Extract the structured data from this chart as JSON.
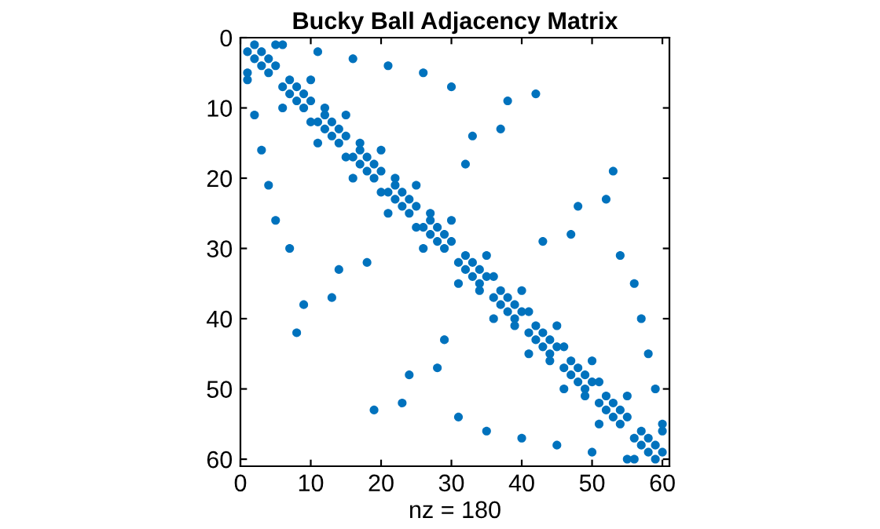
{
  "chart_data": {
    "type": "scatter",
    "title": "Bucky Ball Adjacency Matrix",
    "xlabel": "nz = 180",
    "xlim": [
      0,
      61
    ],
    "ylim": [
      61,
      0
    ],
    "xticks": [
      0,
      10,
      20,
      30,
      40,
      50,
      60
    ],
    "yticks": [
      0,
      10,
      20,
      30,
      40,
      50,
      60
    ],
    "marker": "circle",
    "grid": false,
    "legend": false,
    "series": [
      {
        "color": "#0072bd",
        "x": [
          1,
          2,
          2,
          3,
          3,
          4,
          4,
          5,
          1,
          5,
          6,
          7,
          7,
          8,
          8,
          9,
          9,
          10,
          6,
          10,
          11,
          12,
          12,
          13,
          13,
          14,
          14,
          15,
          11,
          15,
          16,
          17,
          17,
          18,
          18,
          19,
          19,
          20,
          16,
          20,
          21,
          22,
          22,
          23,
          23,
          24,
          24,
          25,
          21,
          25,
          26,
          27,
          27,
          28,
          28,
          29,
          29,
          30,
          26,
          30,
          31,
          32,
          32,
          33,
          33,
          34,
          34,
          35,
          31,
          35,
          36,
          37,
          37,
          38,
          38,
          39,
          39,
          40,
          36,
          40,
          41,
          42,
          42,
          43,
          43,
          44,
          44,
          45,
          41,
          45,
          46,
          47,
          47,
          48,
          48,
          49,
          49,
          50,
          46,
          50,
          51,
          52,
          52,
          53,
          53,
          54,
          54,
          55,
          51,
          55,
          56,
          57,
          57,
          58,
          58,
          59,
          59,
          60,
          56,
          60,
          1,
          6,
          2,
          11,
          3,
          16,
          4,
          21,
          5,
          26,
          7,
          30,
          8,
          42,
          9,
          38,
          10,
          12,
          13,
          37,
          14,
          33,
          15,
          17,
          18,
          32,
          19,
          53,
          20,
          22,
          23,
          52,
          24,
          48,
          25,
          27,
          28,
          47,
          29,
          43,
          31,
          54,
          34,
          36,
          35,
          56,
          39,
          41,
          40,
          57,
          44,
          46,
          45,
          58,
          49,
          51,
          50,
          59,
          55,
          60
        ],
        "values": [
          2,
          1,
          3,
          2,
          4,
          3,
          5,
          4,
          5,
          1,
          7,
          6,
          8,
          7,
          9,
          8,
          10,
          9,
          10,
          6,
          12,
          11,
          13,
          12,
          14,
          13,
          15,
          14,
          15,
          11,
          17,
          16,
          18,
          17,
          19,
          18,
          20,
          19,
          20,
          16,
          22,
          21,
          23,
          22,
          24,
          23,
          25,
          24,
          25,
          21,
          27,
          26,
          28,
          27,
          29,
          28,
          30,
          29,
          30,
          26,
          32,
          31,
          33,
          32,
          34,
          33,
          35,
          34,
          35,
          31,
          37,
          36,
          38,
          37,
          39,
          38,
          40,
          39,
          40,
          36,
          42,
          41,
          43,
          42,
          44,
          43,
          45,
          44,
          45,
          41,
          47,
          46,
          48,
          47,
          49,
          48,
          50,
          49,
          50,
          46,
          52,
          51,
          53,
          52,
          54,
          53,
          55,
          54,
          55,
          51,
          57,
          56,
          58,
          57,
          59,
          58,
          60,
          59,
          60,
          56,
          6,
          1,
          11,
          2,
          16,
          3,
          21,
          4,
          26,
          5,
          30,
          7,
          42,
          8,
          38,
          9,
          12,
          10,
          37,
          13,
          33,
          14,
          17,
          15,
          32,
          18,
          53,
          19,
          22,
          20,
          52,
          23,
          48,
          24,
          27,
          25,
          47,
          28,
          43,
          29,
          54,
          31,
          36,
          34,
          56,
          35,
          41,
          39,
          57,
          40,
          46,
          44,
          58,
          45,
          51,
          49,
          59,
          50,
          60,
          55
        ]
      }
    ]
  }
}
